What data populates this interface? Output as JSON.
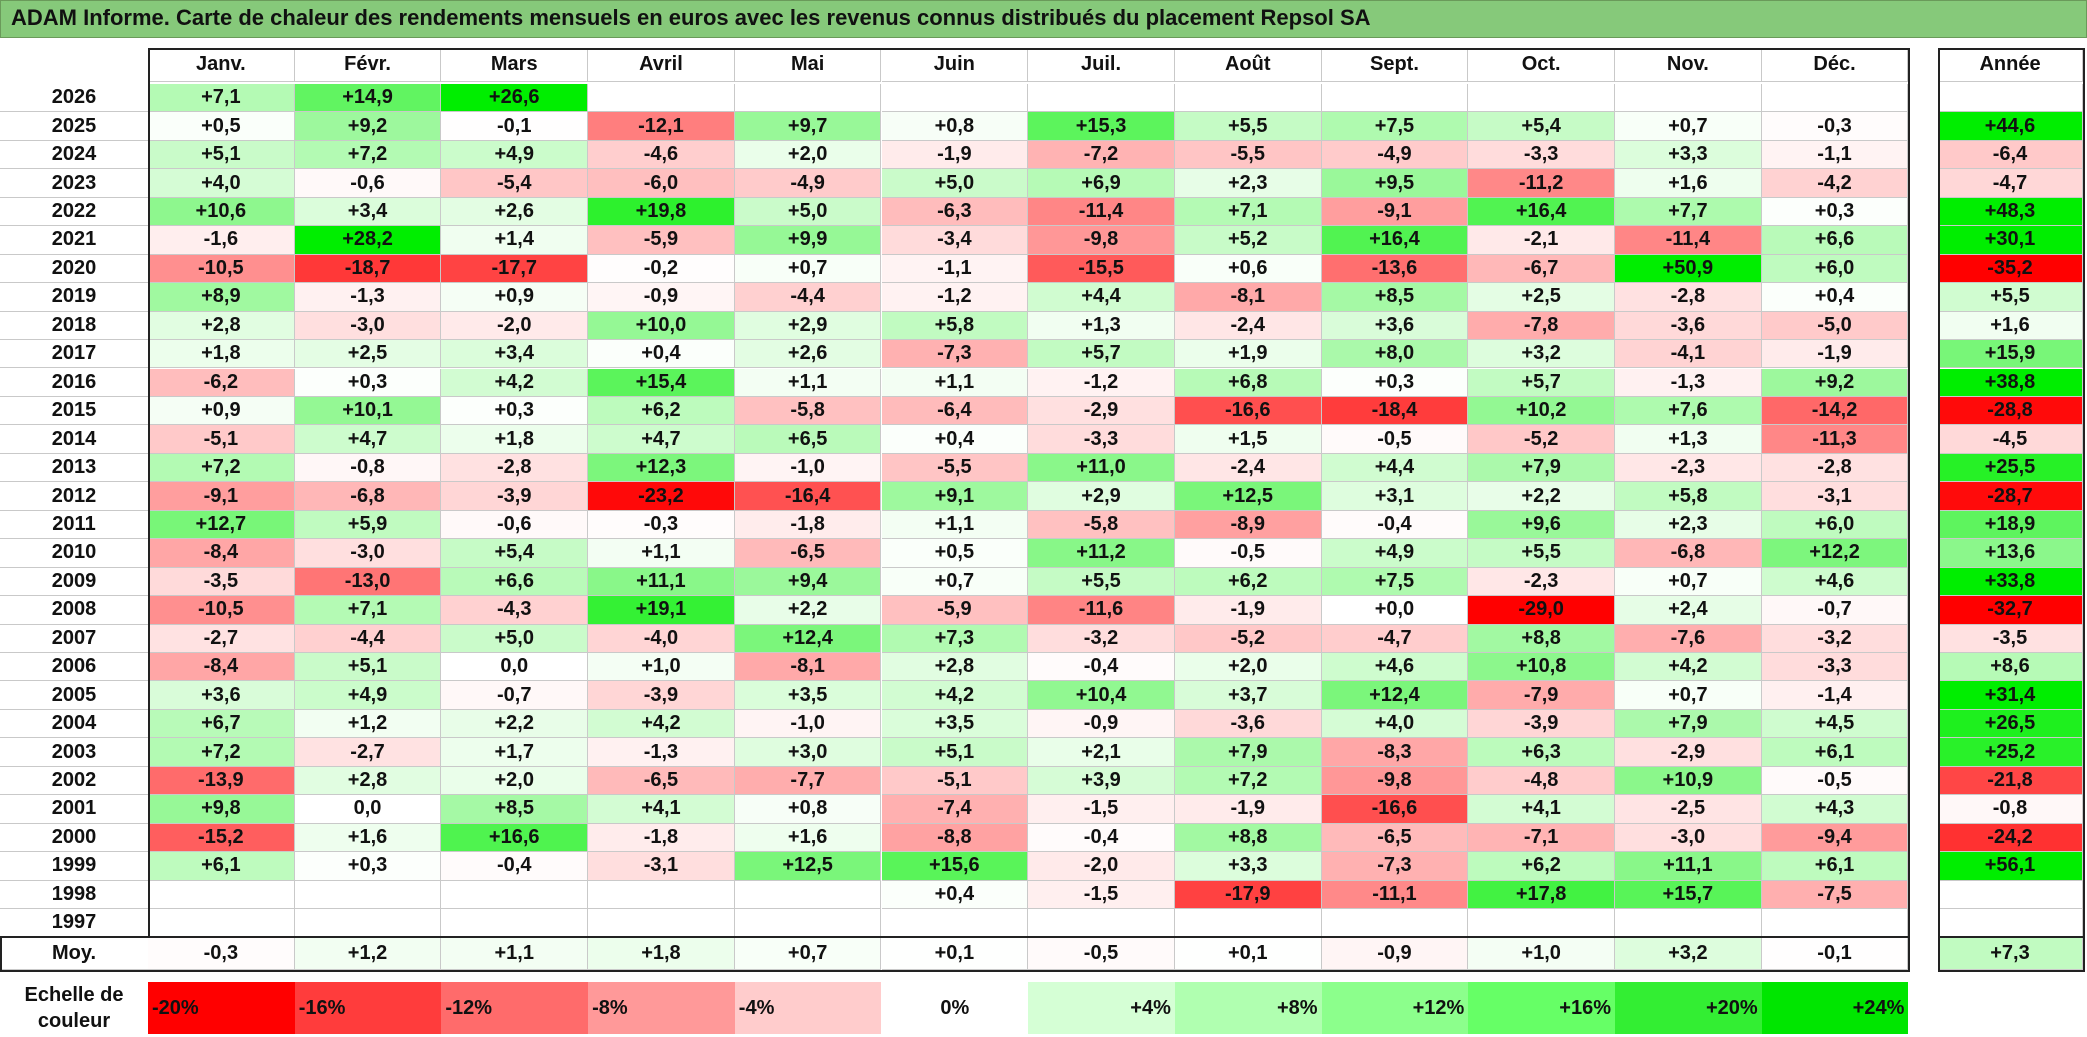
{
  "title": "ADAM Informe. Carte de chaleur des rendements mensuels en euros avec les revenus connus distribués du placement Repsol SA",
  "colors": {
    "title_bg": "#86c97a",
    "negative_max": "#ff0000",
    "neutral": "#ffffff",
    "positive_max": "#00ee00"
  },
  "chart_data": {
    "type": "heatmap",
    "title": "ADAM Informe. Carte de chaleur des rendements mensuels en euros avec les revenus connus distribués du placement Repsol SA",
    "columns": [
      "Janv.",
      "Févr.",
      "Mars",
      "Avril",
      "Mai",
      "Juin",
      "Juil.",
      "Août",
      "Sept.",
      "Oct.",
      "Nov.",
      "Déc."
    ],
    "year_header": "Année",
    "rows": [
      {
        "year": "2026",
        "months": [
          "+7,1",
          "+14,9",
          "+26,6",
          "",
          "",
          "",
          "",
          "",
          "",
          "",
          "",
          ""
        ],
        "annual": ""
      },
      {
        "year": "2025",
        "months": [
          "+0,5",
          "+9,2",
          "-0,1",
          "-12,1",
          "+9,7",
          "+0,8",
          "+15,3",
          "+5,5",
          "+7,5",
          "+5,4",
          "+0,7",
          "-0,3"
        ],
        "annual": "+44,6"
      },
      {
        "year": "2024",
        "months": [
          "+5,1",
          "+7,2",
          "+4,9",
          "-4,6",
          "+2,0",
          "-1,9",
          "-7,2",
          "-5,5",
          "-4,9",
          "-3,3",
          "+3,3",
          "-1,1"
        ],
        "annual": "-6,4"
      },
      {
        "year": "2023",
        "months": [
          "+4,0",
          "-0,6",
          "-5,4",
          "-6,0",
          "-4,9",
          "+5,0",
          "+6,9",
          "+2,3",
          "+9,5",
          "-11,2",
          "+1,6",
          "-4,2"
        ],
        "annual": "-4,7"
      },
      {
        "year": "2022",
        "months": [
          "+10,6",
          "+3,4",
          "+2,6",
          "+19,8",
          "+5,0",
          "-6,3",
          "-11,4",
          "+7,1",
          "-9,1",
          "+16,4",
          "+7,7",
          "+0,3"
        ],
        "annual": "+48,3"
      },
      {
        "year": "2021",
        "months": [
          "-1,6",
          "+28,2",
          "+1,4",
          "-5,9",
          "+9,9",
          "-3,4",
          "-9,8",
          "+5,2",
          "+16,4",
          "-2,1",
          "-11,4",
          "+6,6"
        ],
        "annual": "+30,1"
      },
      {
        "year": "2020",
        "months": [
          "-10,5",
          "-18,7",
          "-17,7",
          "-0,2",
          "+0,7",
          "-1,1",
          "-15,5",
          "+0,6",
          "-13,6",
          "-6,7",
          "+50,9",
          "+6,0"
        ],
        "annual": "-35,2"
      },
      {
        "year": "2019",
        "months": [
          "+8,9",
          "-1,3",
          "+0,9",
          "-0,9",
          "-4,4",
          "-1,2",
          "+4,4",
          "-8,1",
          "+8,5",
          "+2,5",
          "-2,8",
          "+0,4"
        ],
        "annual": "+5,5"
      },
      {
        "year": "2018",
        "months": [
          "+2,8",
          "-3,0",
          "-2,0",
          "+10,0",
          "+2,9",
          "+5,8",
          "+1,3",
          "-2,4",
          "+3,6",
          "-7,8",
          "-3,6",
          "-5,0"
        ],
        "annual": "+1,6"
      },
      {
        "year": "2017",
        "months": [
          "+1,8",
          "+2,5",
          "+3,4",
          "+0,4",
          "+2,6",
          "-7,3",
          "+5,7",
          "+1,9",
          "+8,0",
          "+3,2",
          "-4,1",
          "-1,9"
        ],
        "annual": "+15,9"
      },
      {
        "year": "2016",
        "months": [
          "-6,2",
          "+0,3",
          "+4,2",
          "+15,4",
          "+1,1",
          "+1,1",
          "-1,2",
          "+6,8",
          "+0,3",
          "+5,7",
          "-1,3",
          "+9,2"
        ],
        "annual": "+38,8"
      },
      {
        "year": "2015",
        "months": [
          "+0,9",
          "+10,1",
          "+0,3",
          "+6,2",
          "-5,8",
          "-6,4",
          "-2,9",
          "-16,6",
          "-18,4",
          "+10,2",
          "+7,6",
          "-14,2"
        ],
        "annual": "-28,8"
      },
      {
        "year": "2014",
        "months": [
          "-5,1",
          "+4,7",
          "+1,8",
          "+4,7",
          "+6,5",
          "+0,4",
          "-3,3",
          "+1,5",
          "-0,5",
          "-5,2",
          "+1,3",
          "-11,3"
        ],
        "annual": "-4,5"
      },
      {
        "year": "2013",
        "months": [
          "+7,2",
          "-0,8",
          "-2,8",
          "+12,3",
          "-1,0",
          "-5,5",
          "+11,0",
          "-2,4",
          "+4,4",
          "+7,9",
          "-2,3",
          "-2,8"
        ],
        "annual": "+25,5"
      },
      {
        "year": "2012",
        "months": [
          "-9,1",
          "-6,8",
          "-3,9",
          "-23,2",
          "-16,4",
          "+9,1",
          "+2,9",
          "+12,5",
          "+3,1",
          "+2,2",
          "+5,8",
          "-3,1"
        ],
        "annual": "-28,7"
      },
      {
        "year": "2011",
        "months": [
          "+12,7",
          "+5,9",
          "-0,6",
          "-0,3",
          "-1,8",
          "+1,1",
          "-5,8",
          "-8,9",
          "-0,4",
          "+9,6",
          "+2,3",
          "+6,0"
        ],
        "annual": "+18,9"
      },
      {
        "year": "2010",
        "months": [
          "-8,4",
          "-3,0",
          "+5,4",
          "+1,1",
          "-6,5",
          "+0,5",
          "+11,2",
          "-0,5",
          "+4,9",
          "+5,5",
          "-6,8",
          "+12,2"
        ],
        "annual": "+13,6"
      },
      {
        "year": "2009",
        "months": [
          "-3,5",
          "-13,0",
          "+6,6",
          "+11,1",
          "+9,4",
          "+0,7",
          "+5,5",
          "+6,2",
          "+7,5",
          "-2,3",
          "+0,7",
          "+4,6"
        ],
        "annual": "+33,8"
      },
      {
        "year": "2008",
        "months": [
          "-10,5",
          "+7,1",
          "-4,3",
          "+19,1",
          "+2,2",
          "-5,9",
          "-11,6",
          "-1,9",
          "+0,0",
          "-29,0",
          "+2,4",
          "-0,7"
        ],
        "annual": "-32,7"
      },
      {
        "year": "2007",
        "months": [
          "-2,7",
          "-4,4",
          "+5,0",
          "-4,0",
          "+12,4",
          "+7,3",
          "-3,2",
          "-5,2",
          "-4,7",
          "+8,8",
          "-7,6",
          "-3,2"
        ],
        "annual": "-3,5"
      },
      {
        "year": "2006",
        "months": [
          "-8,4",
          "+5,1",
          "0,0",
          "+1,0",
          "-8,1",
          "+2,8",
          "-0,4",
          "+2,0",
          "+4,6",
          "+10,8",
          "+4,2",
          "-3,3"
        ],
        "annual": "+8,6"
      },
      {
        "year": "2005",
        "months": [
          "+3,6",
          "+4,9",
          "-0,7",
          "-3,9",
          "+3,5",
          "+4,2",
          "+10,4",
          "+3,7",
          "+12,4",
          "-7,9",
          "+0,7",
          "-1,4"
        ],
        "annual": "+31,4"
      },
      {
        "year": "2004",
        "months": [
          "+6,7",
          "+1,2",
          "+2,2",
          "+4,2",
          "-1,0",
          "+3,5",
          "-0,9",
          "-3,6",
          "+4,0",
          "-3,9",
          "+7,9",
          "+4,5"
        ],
        "annual": "+26,5"
      },
      {
        "year": "2003",
        "months": [
          "+7,2",
          "-2,7",
          "+1,7",
          "-1,3",
          "+3,0",
          "+5,1",
          "+2,1",
          "+7,9",
          "-8,3",
          "+6,3",
          "-2,9",
          "+6,1"
        ],
        "annual": "+25,2"
      },
      {
        "year": "2002",
        "months": [
          "-13,9",
          "+2,8",
          "+2,0",
          "-6,5",
          "-7,7",
          "-5,1",
          "+3,9",
          "+7,2",
          "-9,8",
          "-4,8",
          "+10,9",
          "-0,5"
        ],
        "annual": "-21,8"
      },
      {
        "year": "2001",
        "months": [
          "+9,8",
          "0,0",
          "+8,5",
          "+4,1",
          "+0,8",
          "-7,4",
          "-1,5",
          "-1,9",
          "-16,6",
          "+4,1",
          "-2,5",
          "+4,3"
        ],
        "annual": "-0,8"
      },
      {
        "year": "2000",
        "months": [
          "-15,2",
          "+1,6",
          "+16,6",
          "-1,8",
          "+1,6",
          "-8,8",
          "-0,4",
          "+8,8",
          "-6,5",
          "-7,1",
          "-3,0",
          "-9,4"
        ],
        "annual": "-24,2"
      },
      {
        "year": "1999",
        "months": [
          "+6,1",
          "+0,3",
          "-0,4",
          "-3,1",
          "+12,5",
          "+15,6",
          "-2,0",
          "+3,3",
          "-7,3",
          "+6,2",
          "+11,1",
          "+6,1"
        ],
        "annual": "+56,1"
      },
      {
        "year": "1998",
        "months": [
          "",
          "",
          "",
          "",
          "",
          "+0,4",
          "-1,5",
          "-17,9",
          "-11,1",
          "+17,8",
          "+15,7",
          "-7,5"
        ],
        "annual": ""
      },
      {
        "year": "1997",
        "months": [
          "",
          "",
          "",
          "",
          "",
          "",
          "",
          "",
          "",
          "",
          "",
          ""
        ],
        "annual": ""
      }
    ],
    "average": {
      "label": "Moy.",
      "months": [
        "-0,3",
        "+1,2",
        "+1,1",
        "+1,8",
        "+0,7",
        "+0,1",
        "-0,5",
        "+0,1",
        "-0,9",
        "+1,0",
        "+3,2",
        "-0,1"
      ],
      "annual": "+7,3"
    },
    "scale": {
      "label_line1": "Echelle de",
      "label_line2": "couleur",
      "steps": [
        {
          "label": "-20%",
          "value": -20,
          "color": "#ff0000",
          "align": "left"
        },
        {
          "label": "-16%",
          "value": -16,
          "color": "#ff3c3c",
          "align": "left"
        },
        {
          "label": "-12%",
          "value": -12,
          "color": "#ff6b6b",
          "align": "left"
        },
        {
          "label": "-8%",
          "value": -8,
          "color": "#ff9999",
          "align": "left"
        },
        {
          "label": "-4%",
          "value": -4,
          "color": "#ffcccc",
          "align": "left"
        },
        {
          "label": "0%",
          "value": 0,
          "color": "#ffffff",
          "align": "center"
        },
        {
          "label": "+4%",
          "value": 4,
          "color": "#d5ffd5",
          "align": "right"
        },
        {
          "label": "+8%",
          "value": 8,
          "color": "#b0ffb0",
          "align": "right"
        },
        {
          "label": "+12%",
          "value": 12,
          "color": "#8cff8c",
          "align": "right"
        },
        {
          "label": "+16%",
          "value": 16,
          "color": "#66ff66",
          "align": "right"
        },
        {
          "label": "+20%",
          "value": 20,
          "color": "#33ee33",
          "align": "right"
        },
        {
          "label": "+24%",
          "value": 24,
          "color": "#00e600",
          "align": "right"
        }
      ]
    }
  }
}
